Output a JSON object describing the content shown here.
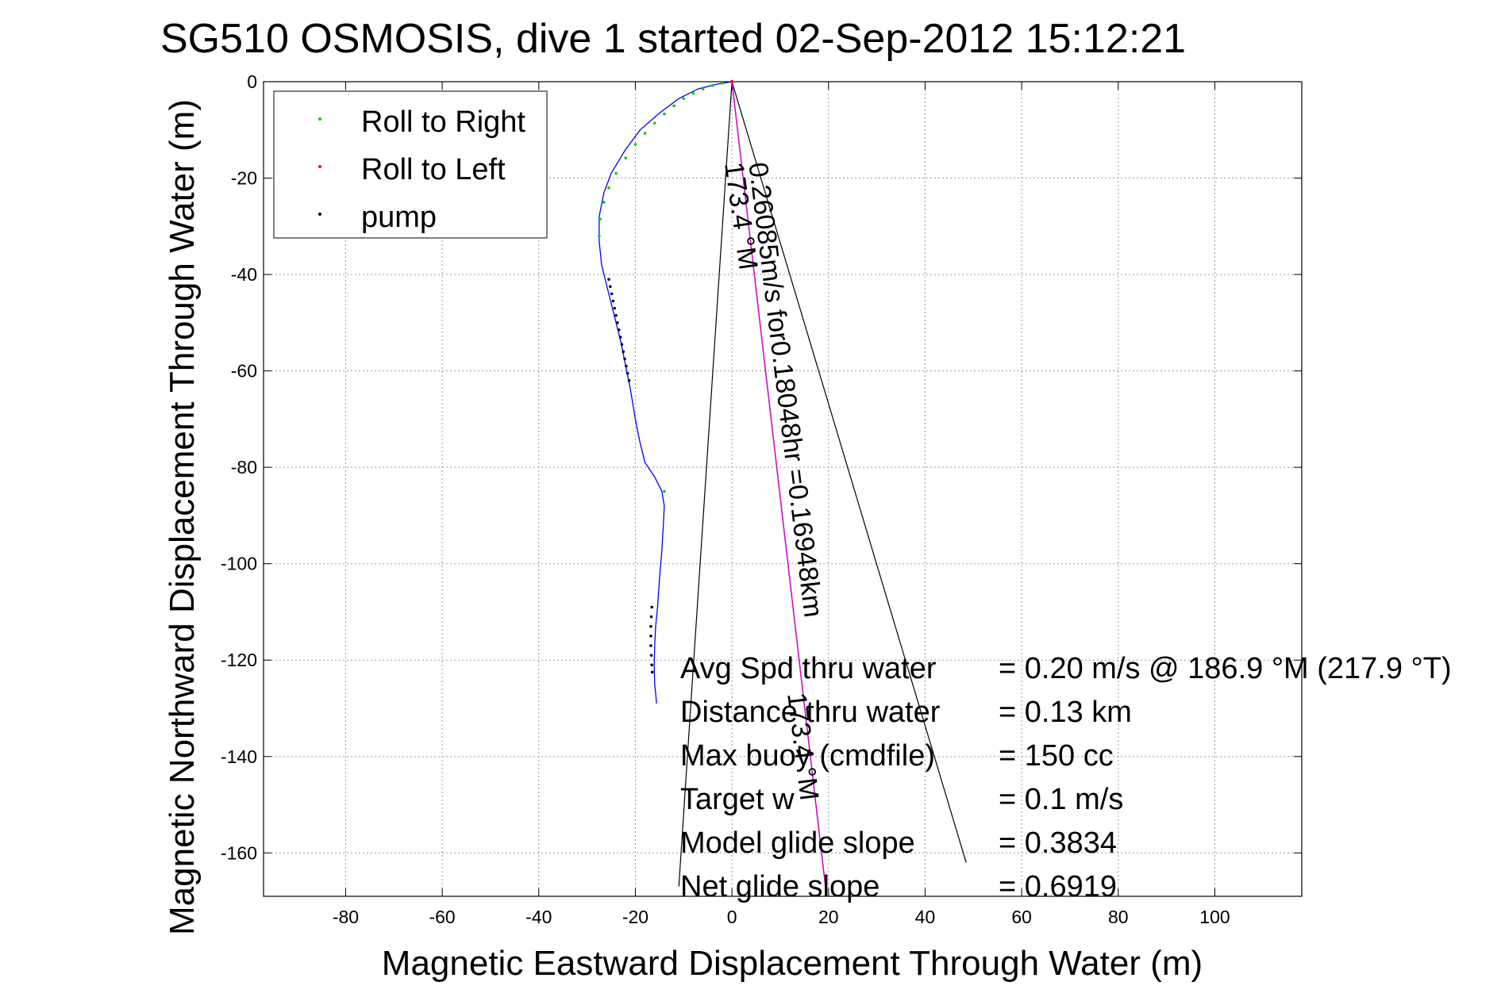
{
  "chart_data": {
    "type": "line",
    "title": "SG510 OSMOSIS, dive 1 started 02-Sep-2012 15:12:21",
    "xlabel": "Magnetic Eastward Displacement Through Water (m)",
    "ylabel": "Magnetic Northward Displacement Through Water (m)",
    "xlim": [
      -97,
      118
    ],
    "ylim": [
      -169,
      0
    ],
    "xticks": [
      -80,
      -60,
      -40,
      -20,
      0,
      20,
      40,
      60,
      80,
      100
    ],
    "yticks": [
      0,
      -20,
      -40,
      -60,
      -80,
      -100,
      -120,
      -140,
      -160
    ],
    "grid": true,
    "legend_position": "top-left",
    "legend": [
      {
        "label": "Roll to Right",
        "color": "#00cc00"
      },
      {
        "label": "Roll to Left",
        "color": "#ff0000"
      },
      {
        "label": "pump",
        "color": "#000033"
      }
    ],
    "track": {
      "color": "#0000ff",
      "x": [
        0,
        -3,
        -7,
        -11,
        -15,
        -19,
        -22,
        -25,
        -26.5,
        -27.5,
        -27.5,
        -27,
        -26,
        -25,
        -24,
        -23,
        -22,
        -21,
        -20,
        -19,
        -18,
        -16,
        -14.5,
        -14,
        -14.2,
        -14.5,
        -15,
        -15.4,
        -15.8,
        -16,
        -16.1,
        -16,
        -15.6
      ],
      "y": [
        0,
        -0.5,
        -1.5,
        -3.5,
        -6.5,
        -10,
        -14,
        -19,
        -23,
        -28,
        -33,
        -38,
        -42,
        -46,
        -50,
        -54,
        -59,
        -64,
        -70,
        -75,
        -79,
        -82,
        -85,
        -88,
        -92,
        -97,
        -103,
        -109,
        -113,
        -117,
        -121,
        -125,
        -129
      ]
    },
    "roll_right": {
      "color": "#00cc00",
      "x": [
        0,
        -2,
        -4,
        -6,
        -8,
        -10,
        -12,
        -14,
        -16,
        -18,
        -20,
        -22,
        -24,
        -25.5,
        -26.5,
        -27.3,
        -27.5,
        -14
      ],
      "y": [
        0,
        -0.3,
        -0.8,
        -1.5,
        -2.4,
        -3.5,
        -5,
        -6.7,
        -8.6,
        -10.7,
        -13,
        -15.8,
        -19,
        -22,
        -25,
        -28.5,
        -32,
        -85
      ]
    },
    "roll_left": {
      "color": "#ff0000",
      "x": [
        0
      ],
      "y": [
        0
      ]
    },
    "pump": {
      "color": "#000033",
      "x": [
        -25.5,
        -25.2,
        -24.9,
        -24.6,
        -24.3,
        -24,
        -23.7,
        -23.4,
        -23.1,
        -22.8,
        -22.5,
        -22.2,
        -21.9,
        -21.6,
        -21.3,
        -16.6,
        -16.7,
        -16.8,
        -16.8,
        -16.8,
        -16.7,
        -16.6,
        -16.5
      ],
      "y": [
        -41,
        -42.5,
        -44,
        -45.5,
        -47,
        -48.5,
        -50,
        -51.5,
        -53,
        -54.5,
        -56,
        -57.5,
        -59,
        -60.5,
        -62,
        -109,
        -111,
        -113,
        -115,
        -117,
        -119,
        -121,
        -122.5
      ]
    },
    "magenta_line": {
      "color": "#cc00cc",
      "x": [
        0,
        19.6
      ],
      "y": [
        0,
        -169
      ]
    },
    "black_lines": [
      {
        "x": [
          0,
          -11
        ],
        "y": [
          0,
          -167
        ]
      },
      {
        "x": [
          0,
          48.5
        ],
        "y": [
          0,
          -162
        ]
      }
    ],
    "annotations": [
      {
        "text": "173.4 °M",
        "x": -1.5,
        "y": -17,
        "rotation": 82
      },
      {
        "text": "0.26085m/s for0.18048hr =0.16948km",
        "x": 3.5,
        "y": -17,
        "rotation": 83
      },
      {
        "text": "173.4 °M",
        "x": 11.5,
        "y": -127,
        "rotation": 83
      }
    ],
    "stats": [
      {
        "label": "Avg Spd thru water",
        "value": "=  0.20 m/s @ 186.9 °M (217.9 °T)"
      },
      {
        "label": "Distance thru water",
        "value": "=  0.13 km"
      },
      {
        "label": "Max buoy (cmdfile)",
        "value": "= 150 cc"
      },
      {
        "label": "Target w",
        "value": "= 0.1 m/s"
      },
      {
        "label": "Model glide slope",
        "value": "= 0.3834"
      },
      {
        "label": "Net glide slope",
        "value": "= 0.6919"
      }
    ]
  }
}
